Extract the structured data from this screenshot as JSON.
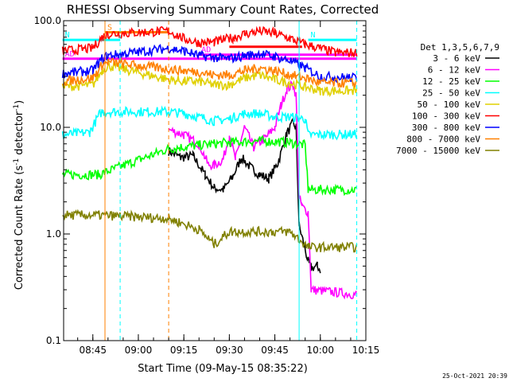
{
  "chart_data": {
    "type": "line",
    "title": "RHESSI Observing Summary Count Rates, Corrected",
    "xlabel": "Start Time (09-May-15 08:35:22)",
    "ylabel_main": "Corrected Count Rate (s",
    "ylabel_sup1": "-1",
    "ylabel_mid": " detector",
    "ylabel_sup2": "-1",
    "ylabel_end": ")",
    "y_scale": "log",
    "ylim": [
      0.1,
      100
    ],
    "xlim": [
      "08:35:22",
      "10:15:00"
    ],
    "x_ticks": [
      "08:45",
      "09:00",
      "09:15",
      "09:30",
      "09:45",
      "10:00",
      "10:15"
    ],
    "y_ticks": [
      "0.1",
      "1.0",
      "10.0",
      "100.0"
    ],
    "legend_title": "Det 1,3,5,6,7,9",
    "legend_placement": "right",
    "timestamp": "25-Oct-2021 20:39",
    "series": [
      {
        "name": "3 - 6 keV",
        "color": "#000000",
        "points": [
          [
            "09:10",
            6
          ],
          [
            "09:14",
            5.2
          ],
          [
            "09:18",
            5.4
          ],
          [
            "09:22",
            3.6
          ],
          [
            "09:25",
            2.7
          ],
          [
            "09:28",
            2.6
          ],
          [
            "09:31",
            3.4
          ],
          [
            "09:34",
            5.2
          ],
          [
            "09:37",
            4.2
          ],
          [
            "09:40",
            3.6
          ],
          [
            "09:43",
            3.3
          ],
          [
            "09:46",
            4.6
          ],
          [
            "09:49",
            8.8
          ],
          [
            "09:51",
            11
          ],
          [
            "09:52",
            10
          ],
          [
            "09:53",
            1.2
          ],
          [
            "09:56",
            0.55
          ],
          [
            "09:57",
            0.48
          ],
          [
            "09:59",
            0.5
          ],
          [
            "10:00",
            0.46
          ]
        ]
      },
      {
        "name": "6 - 12 keV",
        "color": "#ff00ff",
        "points": [
          [
            "09:10",
            9.5
          ],
          [
            "09:15",
            8.5
          ],
          [
            "09:20",
            7
          ],
          [
            "09:23",
            4.5
          ],
          [
            "09:25",
            4.4
          ],
          [
            "09:28",
            5
          ],
          [
            "09:30",
            8.5
          ],
          [
            "09:32",
            5
          ],
          [
            "09:35",
            10
          ],
          [
            "09:38",
            6.5
          ],
          [
            "09:42",
            8
          ],
          [
            "09:45",
            10
          ],
          [
            "09:47",
            16
          ],
          [
            "09:49",
            23
          ],
          [
            "09:51",
            25
          ],
          [
            "09:52",
            20
          ],
          [
            "09:53",
            2.2
          ],
          [
            "09:54",
            1.8
          ],
          [
            "09:56",
            1.6
          ],
          [
            "09:57",
            0.3
          ],
          [
            "10:12",
            0.27
          ]
        ]
      },
      {
        "name": "12 - 25 keV",
        "color": "#00ff00",
        "points": [
          [
            "08:35",
            3.6
          ],
          [
            "08:47",
            3.6
          ],
          [
            "09:10",
            6.3
          ],
          [
            "09:20",
            6.8
          ],
          [
            "09:30",
            7.2
          ],
          [
            "09:40",
            7.5
          ],
          [
            "09:50",
            7.2
          ],
          [
            "09:55",
            6.8
          ],
          [
            "09:56",
            2.6
          ],
          [
            "10:12",
            2.6
          ]
        ]
      },
      {
        "name": "25 - 50 keV",
        "color": "#00ffff",
        "points": [
          [
            "08:35",
            8.5
          ],
          [
            "08:44",
            9
          ],
          [
            "08:47",
            13
          ],
          [
            "08:48",
            14
          ],
          [
            "09:10",
            14
          ],
          [
            "09:15",
            13.5
          ],
          [
            "09:20",
            12.5
          ],
          [
            "09:25",
            11.5
          ],
          [
            "09:30",
            12
          ],
          [
            "09:35",
            13.5
          ],
          [
            "09:40",
            13.5
          ],
          [
            "09:45",
            12.5
          ],
          [
            "09:50",
            12.5
          ],
          [
            "09:55",
            12
          ],
          [
            "09:56",
            8.5
          ],
          [
            "10:12",
            8.6
          ]
        ]
      },
      {
        "name": "50 - 100 keV",
        "color": "#e0d000",
        "points": [
          [
            "08:35",
            24
          ],
          [
            "08:45",
            25
          ],
          [
            "08:48",
            34
          ],
          [
            "08:50",
            38
          ],
          [
            "09:10",
            28
          ],
          [
            "09:15",
            27
          ],
          [
            "09:20",
            27
          ],
          [
            "09:25",
            25
          ],
          [
            "09:30",
            25
          ],
          [
            "09:35",
            29
          ],
          [
            "09:40",
            31
          ],
          [
            "09:45",
            28
          ],
          [
            "09:50",
            26
          ],
          [
            "09:55",
            24
          ],
          [
            "10:00",
            22
          ],
          [
            "10:12",
            22
          ]
        ]
      },
      {
        "name": "100 - 300 keV",
        "color": "#ff0000",
        "points": [
          [
            "08:35",
            52
          ],
          [
            "08:45",
            55
          ],
          [
            "08:48",
            70
          ],
          [
            "08:50",
            75
          ],
          [
            "09:10",
            80
          ],
          [
            "09:15",
            68
          ],
          [
            "09:20",
            62
          ],
          [
            "09:25",
            63
          ],
          [
            "09:30",
            68
          ],
          [
            "09:35",
            75
          ],
          [
            "09:40",
            80
          ],
          [
            "09:45",
            76
          ],
          [
            "09:50",
            68
          ],
          [
            "09:55",
            60
          ],
          [
            "10:00",
            55
          ],
          [
            "10:05",
            50
          ],
          [
            "10:12",
            50
          ]
        ]
      },
      {
        "name": "300 - 800 keV",
        "color": "#0000ff",
        "points": [
          [
            "08:35",
            32
          ],
          [
            "08:45",
            34
          ],
          [
            "08:48",
            44
          ],
          [
            "08:50",
            47
          ],
          [
            "09:10",
            55
          ],
          [
            "09:15",
            52
          ],
          [
            "09:20",
            47
          ],
          [
            "09:25",
            45
          ],
          [
            "09:30",
            44
          ],
          [
            "09:35",
            47
          ],
          [
            "09:40",
            49
          ],
          [
            "09:45",
            46
          ],
          [
            "09:50",
            42
          ],
          [
            "09:55",
            36
          ],
          [
            "10:00",
            30
          ],
          [
            "10:12",
            29
          ]
        ]
      },
      {
        "name": "800 - 7000 keV",
        "color": "#ff8000",
        "points": [
          [
            "08:35",
            27
          ],
          [
            "08:45",
            29
          ],
          [
            "08:48",
            38
          ],
          [
            "08:50",
            41
          ],
          [
            "09:10",
            35
          ],
          [
            "09:15",
            34
          ],
          [
            "09:20",
            33
          ],
          [
            "09:25",
            31
          ],
          [
            "09:30",
            31
          ],
          [
            "09:35",
            34
          ],
          [
            "09:40",
            36
          ],
          [
            "09:45",
            34
          ],
          [
            "09:50",
            31
          ],
          [
            "09:55",
            29
          ],
          [
            "10:00",
            26
          ],
          [
            "10:12",
            26
          ]
        ]
      },
      {
        "name": "7000 - 15000 keV",
        "color": "#808000",
        "points": [
          [
            "08:35",
            1.5
          ],
          [
            "08:47",
            1.5
          ],
          [
            "09:10",
            1.4
          ],
          [
            "09:20",
            1.1
          ],
          [
            "09:25",
            0.8
          ],
          [
            "09:30",
            1.05
          ],
          [
            "09:50",
            1.05
          ],
          [
            "09:56",
            0.75
          ],
          [
            "10:12",
            0.75
          ]
        ]
      }
    ],
    "flags": [
      {
        "label": "S",
        "color": "#ff8000",
        "start": "08:49",
        "end": "09:10",
        "level": 78
      },
      {
        "label": "N",
        "color": "#00ffff",
        "start": "08:35",
        "end": "08:54",
        "level": 66
      },
      {
        "label": "N",
        "color": "#00ffff",
        "start": "09:56",
        "end": "10:12",
        "level": 66
      },
      {
        "label": "F",
        "color": "#ff0000",
        "start": "09:30",
        "end": "09:54",
        "level": 57
      },
      {
        "label": "AD",
        "color": "#ff00ff",
        "start": "08:35",
        "end": "10:12",
        "level": 44
      },
      {
        "label": "AD",
        "color": "#ff00ff",
        "start": "09:20",
        "end": "10:12",
        "level": 48
      }
    ],
    "vlines": [
      {
        "time": "08:49",
        "color": "#ff8000",
        "style": "solid"
      },
      {
        "time": "08:54",
        "color": "#00ffff",
        "style": "dash"
      },
      {
        "time": "09:10",
        "color": "#ff8000",
        "style": "dash"
      },
      {
        "time": "09:53",
        "color": "#00ffff",
        "style": "solid"
      },
      {
        "time": "10:12",
        "color": "#00ffff",
        "style": "dash"
      }
    ]
  }
}
